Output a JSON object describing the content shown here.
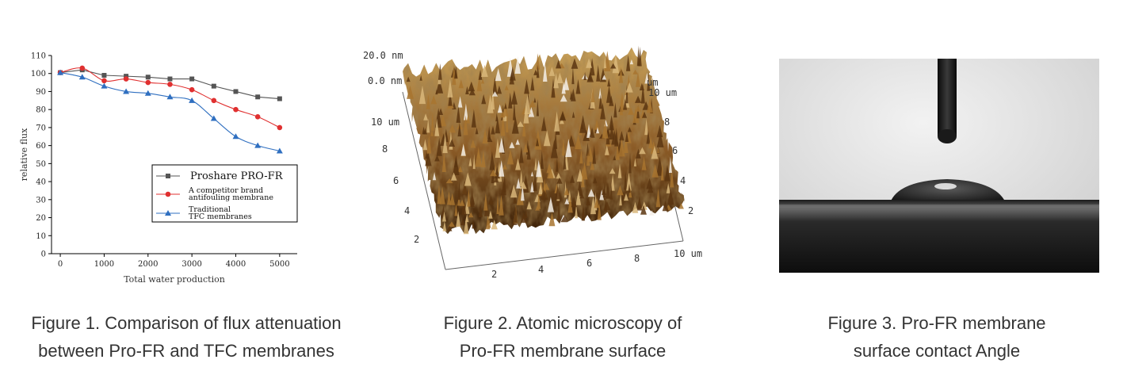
{
  "figures": [
    {
      "caption_lines": [
        "Figure 1. Comparison of flux attenuation",
        "between Pro-FR and TFC membranes"
      ]
    },
    {
      "caption_lines": [
        "Figure 2. Atomic microscopy of",
        "Pro-FR membrane surface"
      ]
    },
    {
      "caption_lines": [
        "Figure 3. Pro-FR membrane",
        "surface contact Angle"
      ]
    }
  ],
  "chart_data": {
    "type": "line",
    "xlabel": "Total water production",
    "ylabel": "relative flux",
    "xlim": [
      -200,
      5400
    ],
    "ylim": [
      0,
      110
    ],
    "xticks": [
      0,
      1000,
      2000,
      3000,
      4000,
      5000
    ],
    "yticks": [
      0,
      10,
      20,
      30,
      40,
      50,
      60,
      70,
      80,
      90,
      100,
      110
    ],
    "grid": false,
    "legend_position": "bottom-right",
    "x": [
      0,
      500,
      1000,
      1500,
      2000,
      2500,
      3000,
      3500,
      4000,
      4500,
      5000
    ],
    "series": [
      {
        "name": "Proshare PRO-FR",
        "marker": "square",
        "color": "#555555",
        "values": [
          100.5,
          102,
          99,
          98.5,
          98,
          97,
          97,
          93,
          90,
          87,
          86
        ]
      },
      {
        "name": "A competitor brand antifouling membrane",
        "marker": "circle",
        "color": "#e03030",
        "values": [
          100.5,
          103,
          96,
          97,
          95,
          94,
          91,
          85,
          80,
          76,
          70
        ]
      },
      {
        "name": "Traditional TFC membranes",
        "marker": "triangle",
        "color": "#2f6fc0",
        "values": [
          100.5,
          98,
          93,
          90,
          89,
          87,
          85,
          75,
          65,
          60,
          57
        ]
      }
    ],
    "legend_labels": [
      [
        "Proshare PRO-FR"
      ],
      [
        "A competitor brand",
        "antifouling membrane"
      ],
      [
        "Traditional",
        "TFC membranes"
      ]
    ]
  },
  "afm": {
    "z_top": "20.0 nm",
    "z_zero": "0.0 nm",
    "left_axis_ticks": [
      "10 um",
      "8",
      "6",
      "4",
      "2"
    ],
    "front_axis_ticks": [
      "2",
      "4",
      "6",
      "8",
      "10 um"
    ],
    "right_axis_ticks": [
      "um",
      "10 um",
      "8",
      "6",
      "4",
      "2"
    ]
  }
}
